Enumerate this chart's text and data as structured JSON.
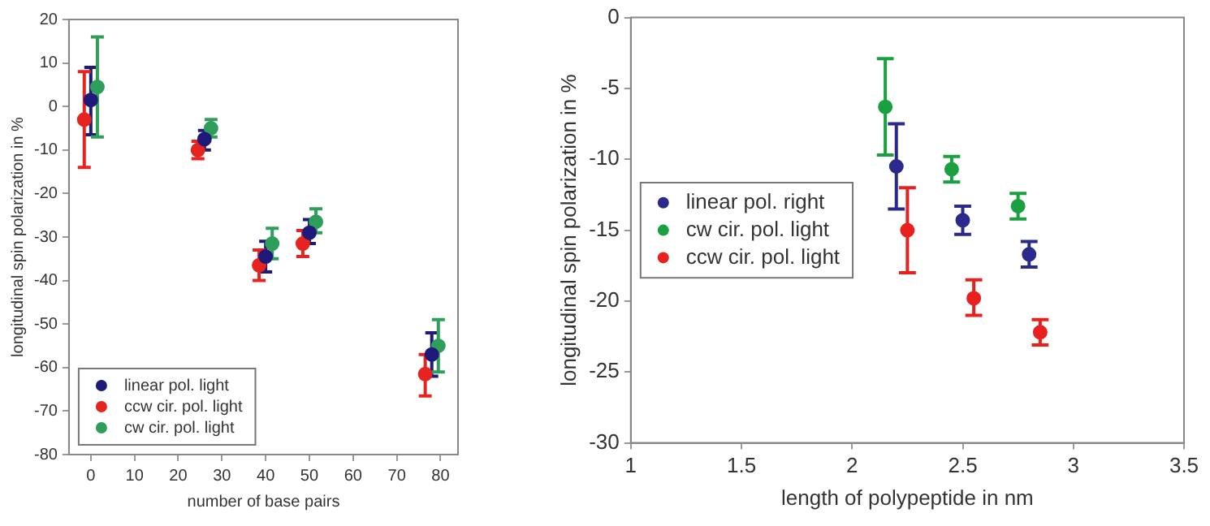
{
  "chart_data": [
    {
      "type": "scatter",
      "xlabel": "number of base pairs",
      "ylabel": "longitudinal spin polarization in %",
      "xlim": [
        -5,
        84
      ],
      "xticks": [
        0,
        10,
        20,
        30,
        40,
        50,
        60,
        70,
        80
      ],
      "ylim": [
        -80,
        20
      ],
      "yticks": [
        -80,
        -70,
        -60,
        -50,
        -40,
        -30,
        -20,
        -10,
        0,
        10,
        20
      ],
      "grid": false,
      "legend": "bottom left",
      "marker": "circle",
      "series": [
        {
          "name": "linear pol. light",
          "color": "#1f1a7a",
          "x": [
            0,
            26,
            40,
            50,
            78
          ],
          "values": [
            1.5,
            -7.5,
            -34.5,
            -29,
            -57
          ],
          "errors": [
            [
              -6.5,
              9
            ],
            [
              -10,
              -5.5
            ],
            [
              -38,
              -31
            ],
            [
              -31.5,
              -26
            ],
            [
              -62,
              -52
            ]
          ]
        },
        {
          "name": "ccw cir. pol. light",
          "color": "#e52420",
          "x": [
            -1.5,
            24.5,
            38.5,
            48.5,
            76.5
          ],
          "values": [
            -3,
            -10,
            -36.5,
            -31.5,
            -61.5
          ],
          "errors": [
            [
              -14,
              8
            ],
            [
              -12,
              -8
            ],
            [
              -40,
              -33
            ],
            [
              -34.5,
              -28.5
            ],
            [
              -66.5,
              -57
            ]
          ]
        },
        {
          "name": "cw cir. pol. light",
          "color": "#2e9e5a",
          "x": [
            1.5,
            27.5,
            41.5,
            51.5,
            79.5
          ],
          "values": [
            4.5,
            -5,
            -31.5,
            -26.5,
            -55
          ],
          "errors": [
            [
              -7,
              16
            ],
            [
              -7,
              -3
            ],
            [
              -35,
              -28
            ],
            [
              -29,
              -23.5
            ],
            [
              -61,
              -49
            ]
          ]
        }
      ]
    },
    {
      "type": "scatter",
      "xlabel": "length of polypeptide in nm",
      "ylabel": "longitudinal spin polarization in %",
      "xlim": [
        1,
        3.5
      ],
      "xticks": [
        1,
        1.5,
        2,
        2.5,
        3,
        3.5
      ],
      "ylim": [
        -30,
        0
      ],
      "yticks": [
        -30,
        -25,
        -20,
        -15,
        -10,
        -5,
        0
      ],
      "grid": false,
      "legend": "left",
      "marker": "circle",
      "series": [
        {
          "name": "linear pol. right",
          "color": "#2b2a8c",
          "x": [
            2.2,
            2.5,
            2.8
          ],
          "values": [
            -10.5,
            -14.3,
            -16.7
          ],
          "errors": [
            [
              -13.5,
              -7.5
            ],
            [
              -15.3,
              -13.3
            ],
            [
              -17.6,
              -15.8
            ]
          ]
        },
        {
          "name": "cw cir. pol. light",
          "color": "#1aa040",
          "x": [
            2.15,
            2.45,
            2.75
          ],
          "values": [
            -6.3,
            -10.7,
            -13.3
          ],
          "errors": [
            [
              -9.7,
              -2.9
            ],
            [
              -11.6,
              -9.8
            ],
            [
              -14.2,
              -12.4
            ]
          ]
        },
        {
          "name": "ccw cir. pol. light",
          "color": "#e8201e",
          "x": [
            2.25,
            2.55,
            2.85
          ],
          "values": [
            -15,
            -19.8,
            -22.2
          ],
          "errors": [
            [
              -18,
              -12
            ],
            [
              -21,
              -18.5
            ],
            [
              -23.1,
              -21.3
            ]
          ]
        }
      ]
    }
  ]
}
